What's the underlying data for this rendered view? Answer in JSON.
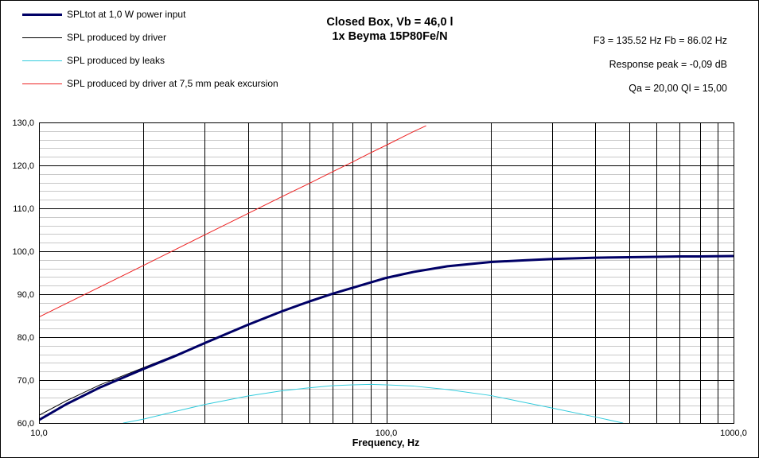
{
  "chart_data": {
    "type": "line",
    "title": "Closed Box, Vb = 46,0 l",
    "subtitle": "1x Beyma 15P80Fe/N",
    "xlabel": "Frequency, Hz",
    "ylabel": "",
    "xscale": "log",
    "xlim": [
      10,
      1000
    ],
    "ylim": [
      60,
      130
    ],
    "x_tick_labels": [
      "10,0",
      "100,0",
      "1000,0"
    ],
    "y_tick_labels": [
      "60,0",
      "70,0",
      "80,0",
      "90,0",
      "100,0",
      "110,0",
      "120,0",
      "130,0"
    ],
    "grid": true,
    "legend_position": "top-left",
    "info": {
      "f3_fb": "F3 = 135.52 Hz  Fb = 86.02 Hz",
      "response_peak": "Response  peak = -0,09 dB",
      "qa_ql": "Qa = 20,00  Ql = 15,00"
    },
    "series": [
      {
        "name": "SPLtot at 1,0 W power input",
        "color": "#000066",
        "x": [
          10,
          12,
          15,
          20,
          25,
          30,
          40,
          50,
          60,
          70,
          80,
          100,
          120,
          150,
          200,
          250,
          300,
          400,
          500,
          600,
          700,
          800,
          1000
        ],
        "y": [
          60.7,
          64.4,
          68.3,
          72.6,
          75.8,
          78.6,
          82.9,
          86.0,
          88.3,
          90.1,
          91.5,
          93.8,
          95.2,
          96.5,
          97.5,
          97.9,
          98.2,
          98.5,
          98.6,
          98.7,
          98.8,
          98.8,
          98.9
        ]
      },
      {
        "name": "SPL produced by driver",
        "color": "#000000",
        "x": [
          10,
          12,
          15,
          20,
          25,
          30,
          40,
          50,
          60,
          70,
          80,
          100,
          120,
          150,
          200,
          250,
          300,
          400,
          500,
          600,
          700,
          800,
          1000
        ],
        "y": [
          61.8,
          65.2,
          68.9,
          72.9,
          76.0,
          78.7,
          82.9,
          86.0,
          88.3,
          90.1,
          91.5,
          93.8,
          95.2,
          96.5,
          97.5,
          97.9,
          98.2,
          98.5,
          98.6,
          98.7,
          98.8,
          98.8,
          98.9
        ]
      },
      {
        "name": "SPL produced by leaks",
        "color": "#33CCDD",
        "x": [
          17.5,
          20,
          25,
          30,
          40,
          50,
          60,
          70,
          80,
          90,
          100,
          120,
          150,
          200,
          250,
          300,
          400,
          480
        ],
        "y": [
          60.0,
          60.9,
          62.8,
          64.3,
          66.3,
          67.5,
          68.2,
          68.7,
          68.9,
          69.0,
          68.9,
          68.6,
          67.8,
          66.4,
          64.8,
          63.5,
          61.4,
          60.0
        ]
      },
      {
        "name": "SPL produced by driver at 7,5 mm peak excursion",
        "color": "#EE2222",
        "x": [
          10,
          20,
          30,
          40,
          50,
          60,
          70,
          80,
          90,
          100,
          120,
          130
        ],
        "y": [
          84.7,
          96.7,
          103.8,
          108.8,
          112.7,
          115.8,
          118.5,
          120.8,
          122.9,
          124.7,
          127.9,
          129.2
        ]
      }
    ]
  }
}
